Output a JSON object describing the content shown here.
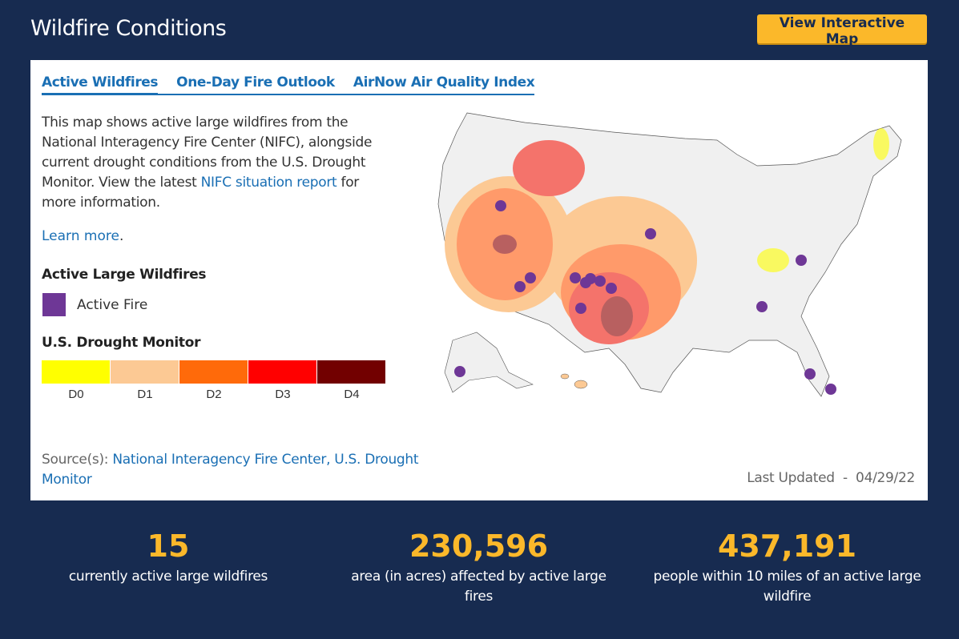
{
  "header": {
    "title": "Wildfire Conditions",
    "button_label": "View Interactive Map"
  },
  "tabs": [
    {
      "label": "Active Wildfires",
      "active": true
    },
    {
      "label": "One-Day Fire Outlook",
      "active": false
    },
    {
      "label": "AirNow Air Quality Index",
      "active": false
    }
  ],
  "description": {
    "text_before": "This map shows active large wildfires from the National Interagency Fire Center (NIFC), alongside current drought conditions from the U.S. Drought Monitor. View the latest ",
    "link": "NIFC situation report",
    "text_after": " for more information.",
    "learn_more": "Learn more",
    "learn_more_suffix": "."
  },
  "legend": {
    "fires_heading": "Active Large Wildfires",
    "fire_label": "Active Fire",
    "fire_color": "#6e3796",
    "drought_heading": "U.S. Drought Monitor",
    "drought_levels": [
      {
        "label": "D0",
        "color": "#ffff00"
      },
      {
        "label": "D1",
        "color": "#fcc994"
      },
      {
        "label": "D2",
        "color": "#ff6a0a"
      },
      {
        "label": "D3",
        "color": "#ff0000"
      },
      {
        "label": "D4",
        "color": "#720000"
      }
    ]
  },
  "source": {
    "prefix": "Source(s): ",
    "link": "National Interagency Fire Center, U.S. Drought Monitor"
  },
  "updated": {
    "label": "Last Updated",
    "separator": "-",
    "date": "04/29/22"
  },
  "stats": [
    {
      "value": "15",
      "label": "currently active large wildfires"
    },
    {
      "value": "230,596",
      "label": "area (in acres) affected by active large fires"
    },
    {
      "value": "437,191",
      "label": "people within 10 miles of an active large wildfire"
    }
  ],
  "colors": {
    "background": "#172b50",
    "accent": "#fbb82a",
    "link": "#1a6fb4"
  }
}
